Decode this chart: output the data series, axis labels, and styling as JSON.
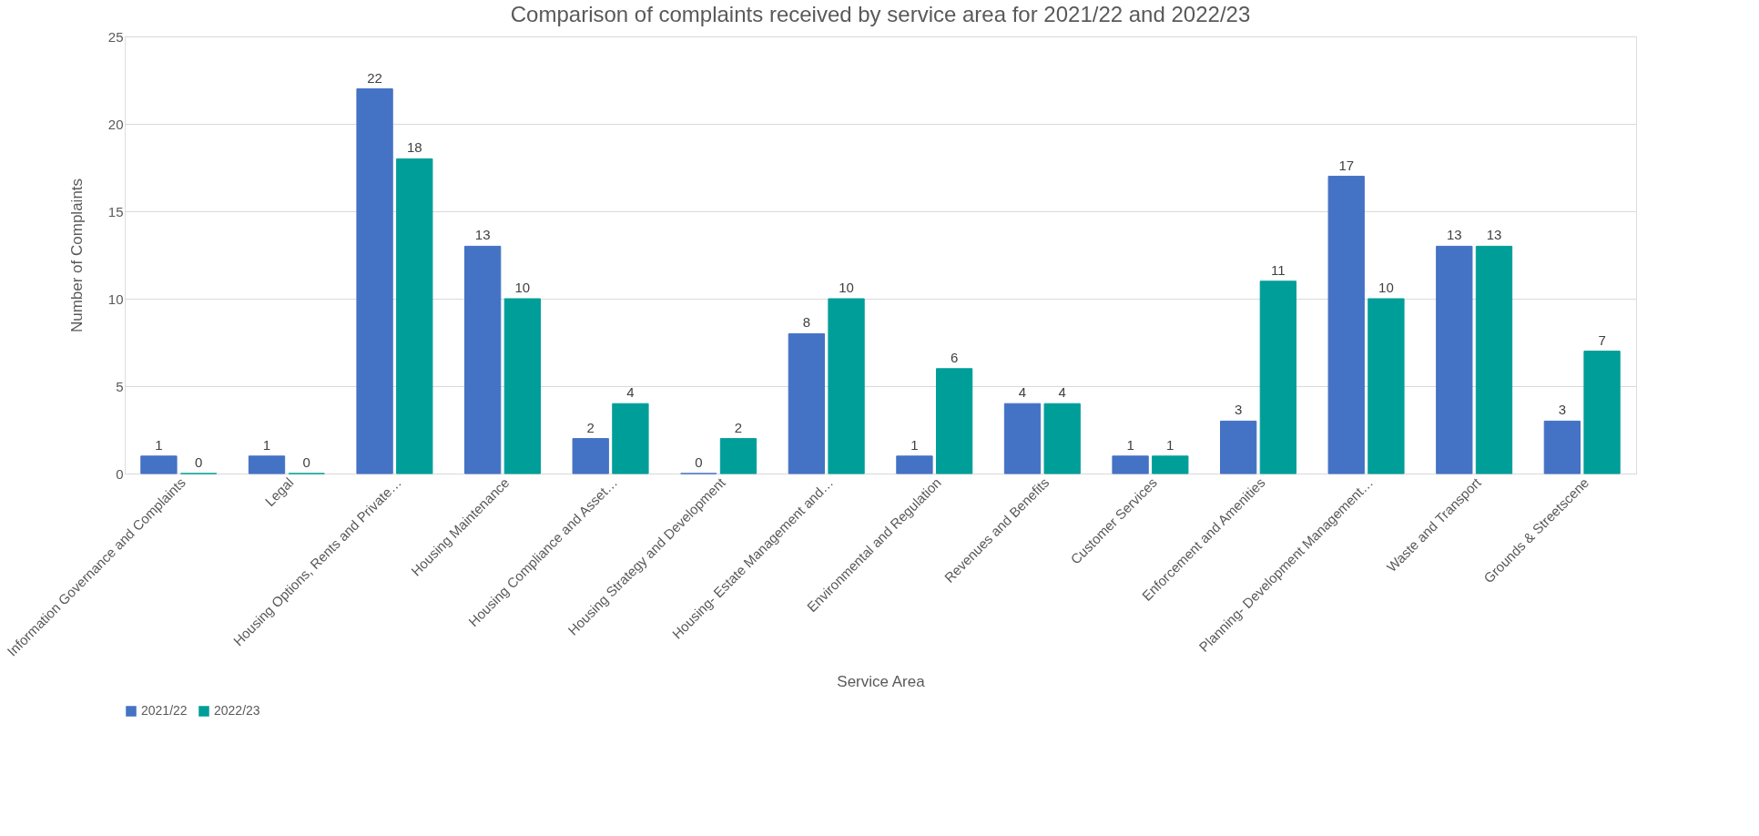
{
  "chart_data": {
    "type": "bar",
    "title": "Comparison of complaints received by service area for 2021/22 and 2022/23",
    "xlabel": "Service Area",
    "ylabel": "Number of Complaints",
    "categories": [
      "Information Governance and Complaints",
      "Legal",
      "Housing Options, Rents and Private…",
      "Housing Maintenance",
      "Housing Compliance and Asset…",
      "Housing Strategy and Development",
      "Housing- Estate Management and…",
      "Environmental and Regulation",
      "Revenues and Benefits",
      "Customer Services",
      "Enforcement and Amenities",
      "Planning- Development Management…",
      "Waste and Transport",
      "Grounds & Streetscene"
    ],
    "series": [
      {
        "name": "2021/22",
        "color": "#4472c4",
        "values": [
          1,
          1,
          22,
          13,
          2,
          0,
          8,
          1,
          4,
          1,
          3,
          17,
          13,
          3
        ]
      },
      {
        "name": "2022/23",
        "color": "#009e99",
        "values": [
          0,
          0,
          18,
          10,
          4,
          2,
          10,
          6,
          4,
          1,
          11,
          10,
          13,
          7
        ]
      }
    ],
    "ylim": [
      0,
      25
    ],
    "yticks": [
      0,
      5,
      10,
      15,
      20,
      25
    ],
    "grid": "y",
    "legend": "bottom",
    "data_labels": true
  }
}
